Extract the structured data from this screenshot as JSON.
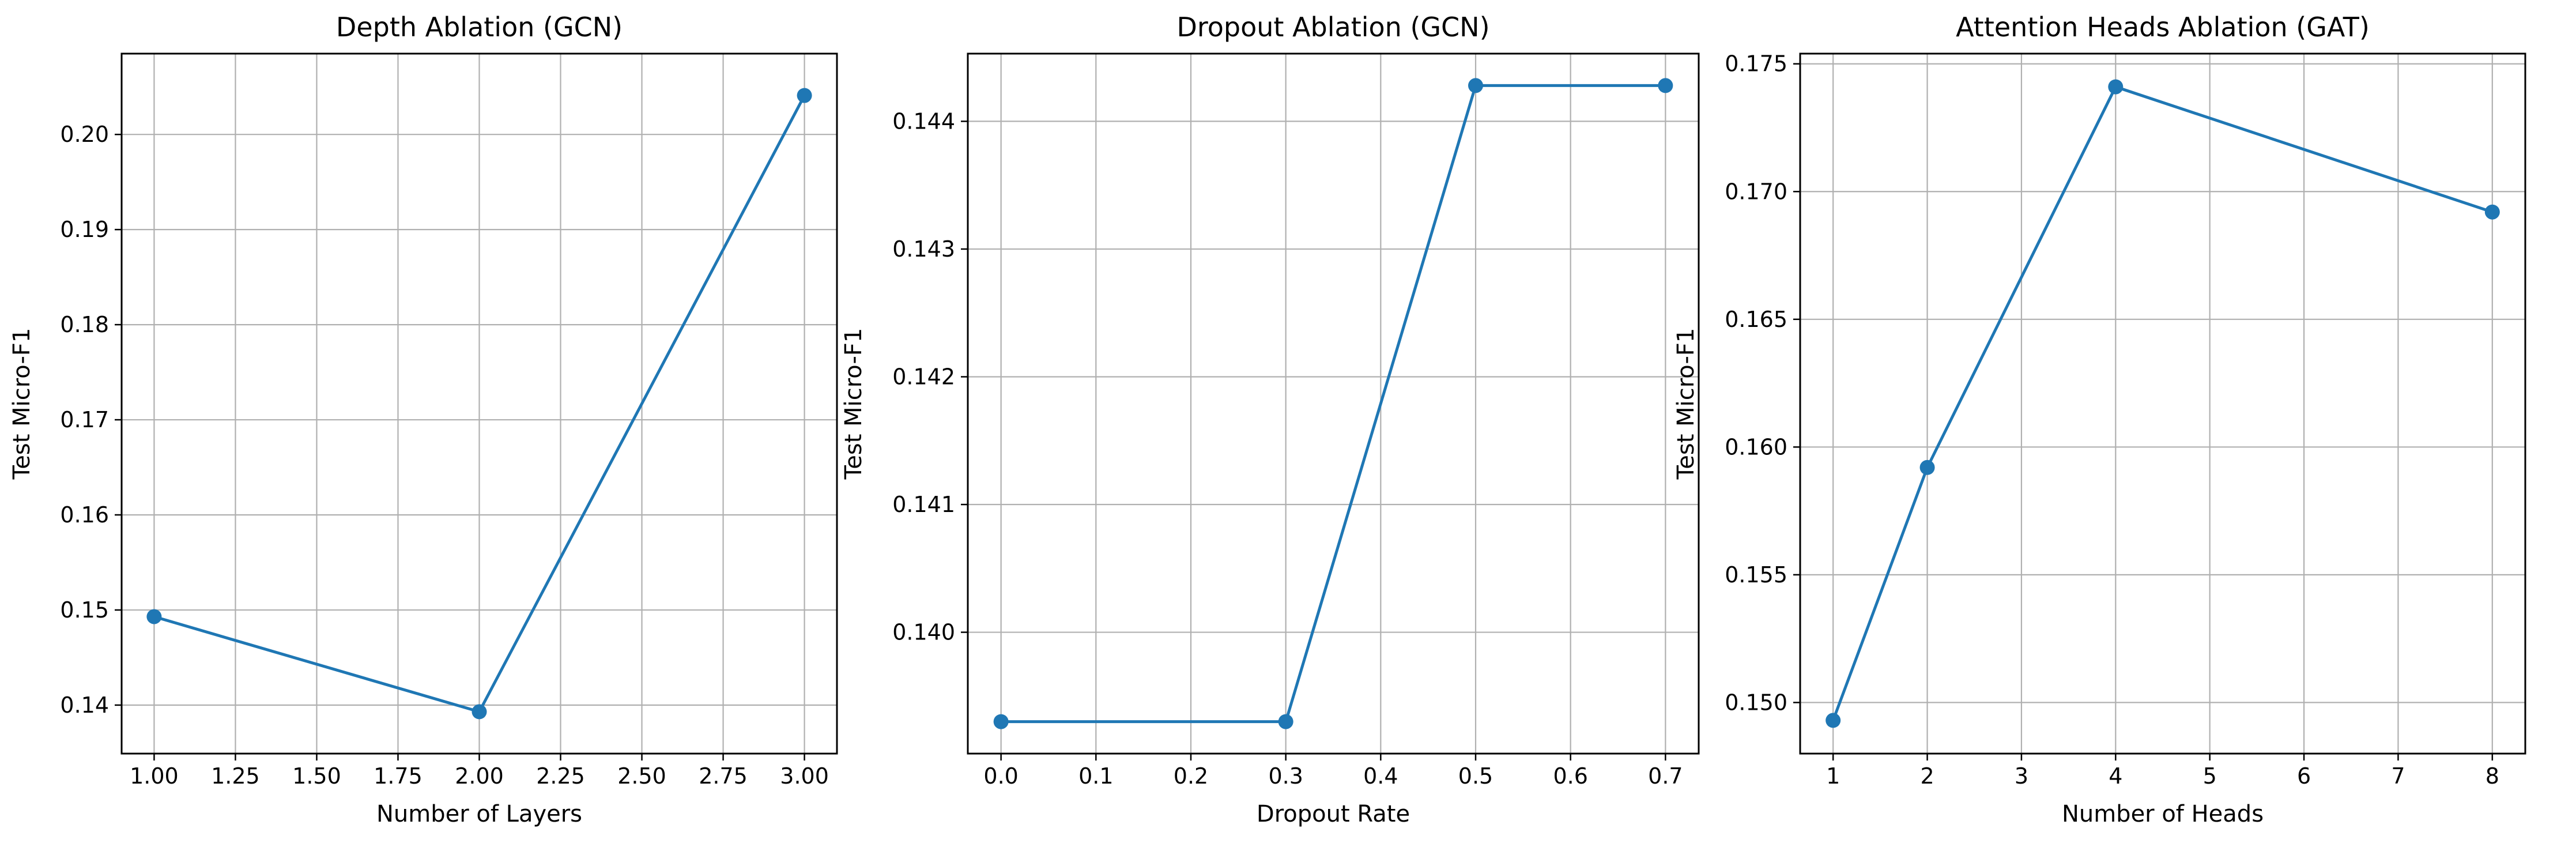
{
  "colors": {
    "line": "#1f77b4",
    "grid": "#b0b0b0",
    "axes": "#000000",
    "background": "#ffffff"
  },
  "chart_data": [
    {
      "type": "line",
      "title": "Depth Ablation (GCN)",
      "xlabel": "Number of Layers",
      "ylabel": "Test Micro-F1",
      "grid": true,
      "marker": "circle",
      "xlim": [
        0.9,
        3.1
      ],
      "ylim": [
        0.1349,
        0.2085
      ],
      "xticks": [
        1.0,
        1.25,
        1.5,
        1.75,
        2.0,
        2.25,
        2.5,
        2.75,
        3.0
      ],
      "xtick_labels": [
        "1.00",
        "1.25",
        "1.50",
        "1.75",
        "2.00",
        "2.25",
        "2.50",
        "2.75",
        "3.00"
      ],
      "yticks": [
        0.14,
        0.15,
        0.16,
        0.17,
        0.18,
        0.19,
        0.2
      ],
      "ytick_labels": [
        "0.14",
        "0.15",
        "0.16",
        "0.17",
        "0.18",
        "0.19",
        "0.20"
      ],
      "series": [
        {
          "x": [
            1,
            2,
            3
          ],
          "y": [
            0.1493,
            0.1393,
            0.2041
          ]
        }
      ]
    },
    {
      "type": "line",
      "title": "Dropout Ablation (GCN)",
      "xlabel": "Dropout Rate",
      "ylabel": "Test Micro-F1",
      "grid": true,
      "marker": "circle",
      "xlim": [
        -0.035,
        0.735
      ],
      "ylim": [
        0.13905,
        0.14453
      ],
      "xticks": [
        0.0,
        0.1,
        0.2,
        0.3,
        0.4,
        0.5,
        0.6,
        0.7
      ],
      "xtick_labels": [
        "0.0",
        "0.1",
        "0.2",
        "0.3",
        "0.4",
        "0.5",
        "0.6",
        "0.7"
      ],
      "yticks": [
        0.14,
        0.141,
        0.142,
        0.143,
        0.144
      ],
      "ytick_labels": [
        "0.140",
        "0.141",
        "0.142",
        "0.143",
        "0.144"
      ],
      "series": [
        {
          "x": [
            0.0,
            0.3,
            0.5,
            0.7
          ],
          "y": [
            0.1393,
            0.1393,
            0.14428,
            0.14428
          ]
        }
      ]
    },
    {
      "type": "line",
      "title": "Attention Heads Ablation (GAT)",
      "xlabel": "Number of Heads",
      "ylabel": "Test Micro-F1",
      "grid": true,
      "marker": "circle",
      "xlim": [
        0.65,
        8.35
      ],
      "ylim": [
        0.148,
        0.1754
      ],
      "xticks": [
        1,
        2,
        3,
        4,
        5,
        6,
        7,
        8
      ],
      "xtick_labels": [
        "1",
        "2",
        "3",
        "4",
        "5",
        "6",
        "7",
        "8"
      ],
      "yticks": [
        0.15,
        0.155,
        0.16,
        0.165,
        0.17,
        0.175
      ],
      "ytick_labels": [
        "0.150",
        "0.155",
        "0.160",
        "0.165",
        "0.170",
        "0.175"
      ],
      "series": [
        {
          "x": [
            1,
            2,
            4,
            8
          ],
          "y": [
            0.1493,
            0.1592,
            0.1741,
            0.1692
          ]
        }
      ]
    }
  ]
}
